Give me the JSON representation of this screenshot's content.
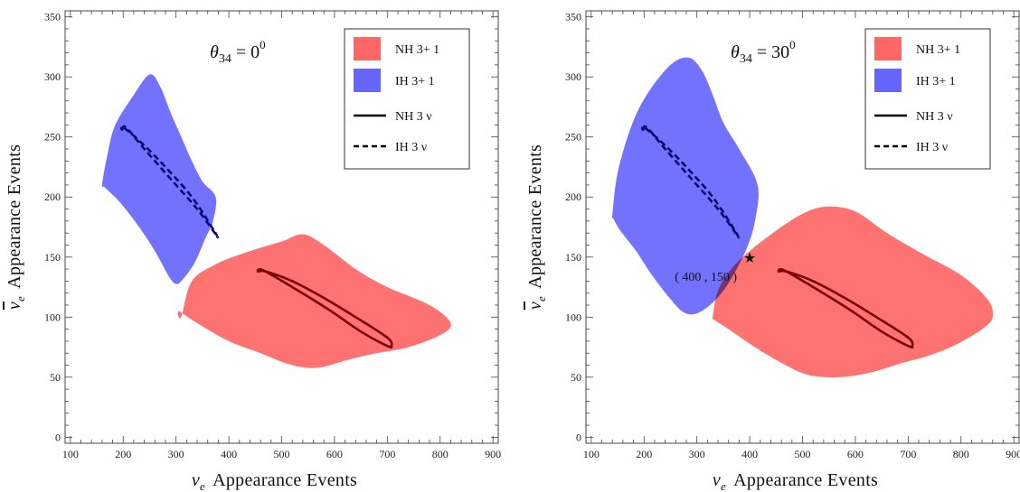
{
  "chart_data": [
    {
      "type": "scatter",
      "panel": "left",
      "xlim": [
        90,
        910
      ],
      "ylim": [
        -5,
        355
      ],
      "xticks": [
        100,
        200,
        300,
        400,
        500,
        600,
        700,
        800,
        900
      ],
      "yticks": [
        0,
        50,
        100,
        150,
        200,
        250,
        300,
        350
      ],
      "xlabel": "Appearance  Events",
      "ylabel": "Appearance  Events",
      "xlabel_symbol": "ν",
      "xlabel_sub": "e",
      "ylabel_symbol": "ν",
      "ylabel_sub": "e",
      "annotation": {
        "text": "θ",
        "sub": "34",
        "value": " =  0",
        "sup": "0"
      },
      "legend": [
        "NH  3+ 1",
        "IH  3+ 1",
        "NH  3 ν",
        "IH  3 ν"
      ],
      "grid": false,
      "legend_position": "top-right",
      "regions": [
        {
          "name": "NH  3+ 1",
          "color": "#ff6666",
          "boundary": [
            [
              310,
              100
            ],
            [
              330,
              130
            ],
            [
              380,
              145
            ],
            [
              440,
              155
            ],
            [
              500,
              163
            ],
            [
              540,
              169
            ],
            [
              580,
              160
            ],
            [
              640,
              140
            ],
            [
              700,
              125
            ],
            [
              780,
              110
            ],
            [
              820,
              95
            ],
            [
              800,
              85
            ],
            [
              740,
              75
            ],
            [
              680,
              70
            ],
            [
              630,
              65
            ],
            [
              570,
              58
            ],
            [
              520,
              60
            ],
            [
              460,
              70
            ],
            [
              400,
              80
            ],
            [
              340,
              95
            ],
            [
              305,
              105
            ]
          ]
        },
        {
          "name": "IH  3+ 1",
          "color": "#6666ff",
          "boundary": [
            [
              160,
              210
            ],
            [
              170,
              235
            ],
            [
              185,
              260
            ],
            [
              220,
              285
            ],
            [
              250,
              302
            ],
            [
              270,
              292
            ],
            [
              290,
              270
            ],
            [
              310,
              250
            ],
            [
              330,
              230
            ],
            [
              350,
              213
            ],
            [
              375,
              200
            ],
            [
              370,
              180
            ],
            [
              355,
              165
            ],
            [
              335,
              145
            ],
            [
              310,
              130
            ],
            [
              298,
              128
            ],
            [
              285,
              135
            ],
            [
              260,
              155
            ],
            [
              230,
              175
            ],
            [
              195,
              195
            ],
            [
              165,
              208
            ]
          ]
        }
      ],
      "contours": [
        {
          "name": "NH  3 ν",
          "style": "solid",
          "color": "#7a0000",
          "boundary": [
            [
              455,
              138
            ],
            [
              465,
              139
            ],
            [
              520,
              125
            ],
            [
              590,
              106
            ],
            [
              650,
              88
            ],
            [
              700,
              76
            ],
            [
              708,
              76
            ],
            [
              700,
              83
            ],
            [
              640,
              100
            ],
            [
              580,
              116
            ],
            [
              520,
              130
            ],
            [
              470,
              138
            ]
          ]
        },
        {
          "name": "IH  3 ν",
          "style": "dashed",
          "color": "#0a0a6e",
          "boundary": [
            [
              198,
              256
            ],
            [
              205,
              258
            ],
            [
              240,
              240
            ],
            [
              290,
              215
            ],
            [
              340,
              190
            ],
            [
              375,
              169
            ],
            [
              378,
              167
            ],
            [
              372,
              172
            ],
            [
              330,
              200
            ],
            [
              280,
              225
            ],
            [
              235,
              245
            ],
            [
              200,
              258
            ]
          ]
        }
      ]
    },
    {
      "type": "scatter",
      "panel": "right",
      "xlim": [
        90,
        910
      ],
      "ylim": [
        -5,
        355
      ],
      "xticks": [
        100,
        200,
        300,
        400,
        500,
        600,
        700,
        800,
        900
      ],
      "yticks": [
        0,
        50,
        100,
        150,
        200,
        250,
        300,
        350
      ],
      "xlabel": "Appearance  Events",
      "ylabel": "Appearance  Events",
      "xlabel_symbol": "ν",
      "xlabel_sub": "e",
      "ylabel_symbol": "ν",
      "ylabel_sub": "e",
      "annotation": {
        "text": "θ",
        "sub": "34",
        "value": " =  30",
        "sup": "0"
      },
      "legend": [
        "NH  3+ 1",
        "IH  3+ 1",
        "NH  3 ν",
        "IH  3 ν"
      ],
      "grid": false,
      "legend_position": "top-right",
      "point": {
        "x": 400,
        "y": 150,
        "label": "( 400 , 150 )"
      },
      "regions": [
        {
          "name": "NH  3+ 1",
          "color": "#ff6666",
          "boundary": [
            [
              330,
              100
            ],
            [
              340,
              122
            ],
            [
              365,
              140
            ],
            [
              400,
              155
            ],
            [
              450,
              172
            ],
            [
              500,
              186
            ],
            [
              545,
              192
            ],
            [
              600,
              188
            ],
            [
              660,
              170
            ],
            [
              730,
              152
            ],
            [
              800,
              135
            ],
            [
              850,
              115
            ],
            [
              860,
              100
            ],
            [
              840,
              90
            ],
            [
              790,
              77
            ],
            [
              740,
              68
            ],
            [
              690,
              62
            ],
            [
              630,
              54
            ],
            [
              570,
              50
            ],
            [
              510,
              52
            ],
            [
              460,
              62
            ],
            [
              410,
              75
            ],
            [
              360,
              90
            ],
            [
              332,
              98
            ]
          ]
        },
        {
          "name": "IH  3+ 1",
          "color": "#6666ff",
          "boundary": [
            [
              140,
              185
            ],
            [
              150,
              220
            ],
            [
              175,
              258
            ],
            [
              205,
              285
            ],
            [
              250,
              310
            ],
            [
              285,
              316
            ],
            [
              310,
              305
            ],
            [
              330,
              285
            ],
            [
              350,
              262
            ],
            [
              380,
              240
            ],
            [
              415,
              210
            ],
            [
              410,
              180
            ],
            [
              395,
              158
            ],
            [
              375,
              140
            ],
            [
              355,
              125
            ],
            [
              330,
              112
            ],
            [
              300,
              103
            ],
            [
              275,
              104
            ],
            [
              250,
              115
            ],
            [
              215,
              135
            ],
            [
              185,
              155
            ],
            [
              155,
              172
            ],
            [
              142,
              182
            ]
          ]
        }
      ],
      "contours": [
        {
          "name": "NH  3 ν",
          "style": "solid",
          "color": "#7a0000",
          "boundary": [
            [
              455,
              138
            ],
            [
              465,
              139
            ],
            [
              520,
              125
            ],
            [
              590,
              106
            ],
            [
              650,
              88
            ],
            [
              700,
              76
            ],
            [
              708,
              76
            ],
            [
              700,
              83
            ],
            [
              640,
              100
            ],
            [
              580,
              116
            ],
            [
              520,
              130
            ],
            [
              470,
              138
            ]
          ]
        },
        {
          "name": "IH  3 ν",
          "style": "dashed",
          "color": "#0a0a6e",
          "boundary": [
            [
              198,
              256
            ],
            [
              205,
              258
            ],
            [
              240,
              240
            ],
            [
              290,
              215
            ],
            [
              340,
              190
            ],
            [
              375,
              169
            ],
            [
              378,
              167
            ],
            [
              372,
              172
            ],
            [
              330,
              200
            ],
            [
              280,
              225
            ],
            [
              235,
              245
            ],
            [
              200,
              258
            ]
          ]
        }
      ]
    }
  ]
}
